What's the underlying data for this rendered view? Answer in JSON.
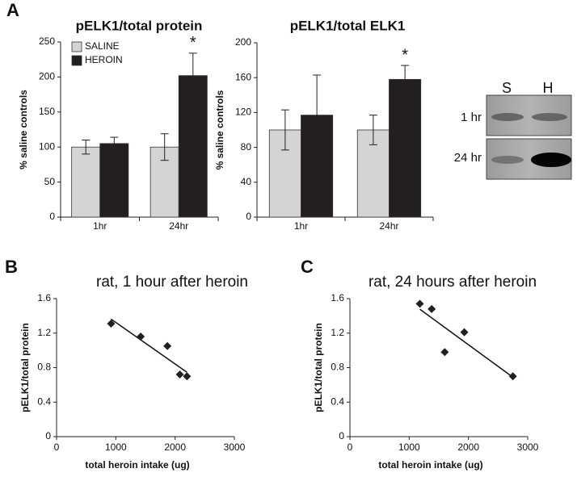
{
  "panels": [
    "A",
    "B",
    "C"
  ],
  "blot": {
    "columns": [
      "S",
      "H"
    ],
    "rows": [
      "1 hr",
      "24 hr"
    ]
  },
  "chart_data": [
    {
      "type": "bar",
      "title": "pELK1/total protein",
      "ylabel": "% saline controls",
      "categories": [
        "1hr",
        "24hr"
      ],
      "legend": "upper-left",
      "series": [
        {
          "name": "SALINE",
          "color": "#d4d4d4",
          "values": [
            100,
            100
          ],
          "errors": [
            10,
            19
          ]
        },
        {
          "name": "HEROIN",
          "color": "#231f20",
          "values": [
            105,
            202
          ],
          "errors": [
            9,
            32
          ]
        }
      ],
      "annotations": [
        "*"
      ],
      "ylim": [
        0,
        250
      ],
      "yticks": [
        0,
        50,
        100,
        150,
        200,
        250
      ]
    },
    {
      "type": "bar",
      "title": "pELK1/total ELK1",
      "ylabel": "% saline controls",
      "categories": [
        "1hr",
        "24hr"
      ],
      "series": [
        {
          "color": "#d4d4d4",
          "values": [
            100,
            100
          ],
          "errors": [
            23,
            17
          ]
        },
        {
          "color": "#231f20",
          "values": [
            117,
            158
          ],
          "errors": [
            46,
            16
          ]
        }
      ],
      "annotations": [
        "*"
      ],
      "ylim": [
        0,
        200
      ],
      "yticks": [
        0,
        40,
        80,
        120,
        160,
        200
      ]
    },
    {
      "type": "scatter",
      "title": "rat, 1 hour after heroin",
      "xlabel": "total heroin intake (ug)",
      "ylabel": "pELK1/total protein",
      "x": [
        920,
        1420,
        1870,
        2080,
        2200
      ],
      "values": [
        1.31,
        1.16,
        1.05,
        0.72,
        0.7
      ],
      "color": "#231f20",
      "trendline": true,
      "xlim": [
        0,
        3000
      ],
      "xticks": [
        0,
        1000,
        2000,
        3000
      ],
      "ylim": [
        0,
        1.6
      ],
      "yticks": [
        0,
        0.4,
        0.8,
        1.2,
        1.6
      ]
    },
    {
      "type": "scatter",
      "title": "rat, 24 hours after heroin",
      "xlabel": "total heroin intake (ug)",
      "ylabel": "pELK1/total protein",
      "x": [
        1180,
        1380,
        1600,
        1930,
        2750
      ],
      "values": [
        1.54,
        1.48,
        0.98,
        1.21,
        0.7
      ],
      "color": "#231f20",
      "trendline": true,
      "xlim": [
        0,
        3000
      ],
      "xticks": [
        0,
        1000,
        2000,
        3000
      ],
      "ylim": [
        0,
        1.6
      ],
      "yticks": [
        0,
        0.4,
        0.8,
        1.2,
        1.6
      ]
    }
  ]
}
